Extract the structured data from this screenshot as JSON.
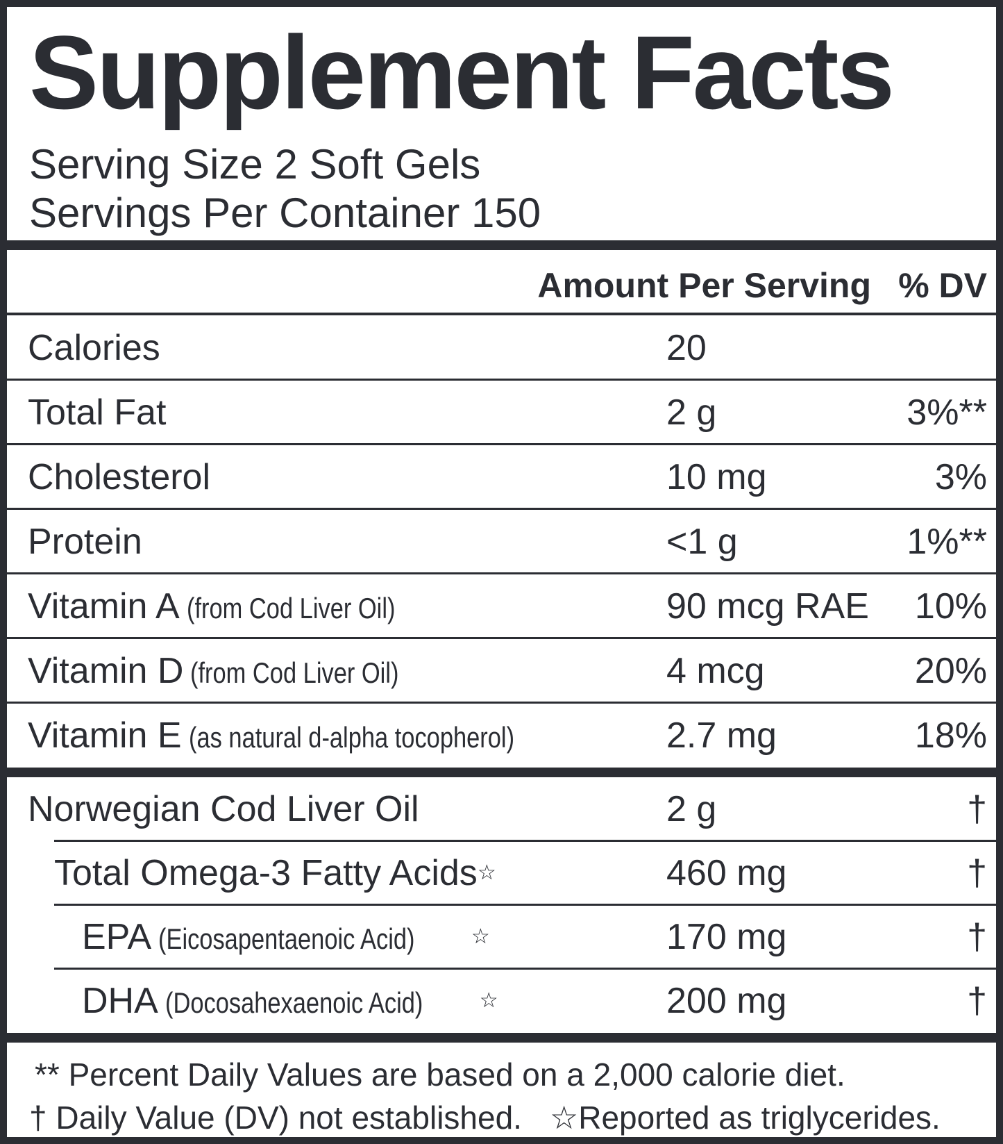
{
  "title": "Supplement Facts",
  "serving_size": "Serving Size 2 Soft Gels",
  "servings_per_container": "Servings Per Container 150",
  "header": {
    "amount": "Amount Per Serving",
    "dv": "% DV"
  },
  "rows": [
    {
      "name": "Calories",
      "amount": "20",
      "dv": ""
    },
    {
      "name": "Total Fat",
      "amount": "2 g",
      "dv": "3%**"
    },
    {
      "name": "Cholesterol",
      "amount": "10 mg",
      "dv": "3%"
    },
    {
      "name": "Protein",
      "amount": "<1 g",
      "dv": "1%**"
    },
    {
      "name": "Vitamin A",
      "qualifier": "(from Cod Liver Oil)",
      "amount": "90 mcg RAE",
      "dv": "10%"
    },
    {
      "name": "Vitamin D",
      "qualifier": "(from Cod Liver Oil)",
      "amount": "4 mcg",
      "dv": "20%"
    },
    {
      "name": "Vitamin E",
      "qualifier": "(as natural d-alpha tocopherol)",
      "amount": "2.7 mg",
      "dv": "18%"
    }
  ],
  "oil_rows": [
    {
      "name": "Norwegian Cod Liver Oil",
      "amount": "2 g",
      "dv": "†"
    },
    {
      "name": "Total Omega-3 Fatty Acids",
      "mark": "☆",
      "amount": "460 mg",
      "dv": "†"
    },
    {
      "name": "EPA",
      "qualifier": "(Eicosapentaenoic Acid)",
      "mark": "☆",
      "amount": "170 mg",
      "dv": "†"
    },
    {
      "name": "DHA",
      "qualifier": "(Docosahexaenoic Acid)",
      "mark": "☆",
      "amount": "200 mg",
      "dv": "†"
    }
  ],
  "footnotes": [
    "** Percent Daily Values are based on a 2,000 calorie diet.",
    "† Daily Value (DV) not established.",
    "☆Reported as triglycerides."
  ]
}
